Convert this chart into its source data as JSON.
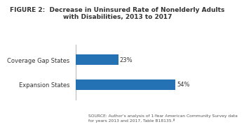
{
  "title_line1": "FIGURE 2:  Decrease in Uninsured Rate of Nonelderly Adults",
  "title_line2": "with Disabilities, 2013 to 2017",
  "categories": [
    "Expansion States",
    "Coverage Gap States"
  ],
  "values": [
    54,
    23
  ],
  "bar_color": "#2472B4",
  "background_color": "#FFFFFF",
  "text_color": "#333333",
  "value_labels": [
    "54%",
    "23%"
  ],
  "source_text": "SOURCE: Author's analysis of 1-Year American Community Survey data\nfor years 2013 and 2017, Table B18135.ª",
  "xlim": [
    0,
    63
  ],
  "title_fontsize": 6.5,
  "label_fontsize": 6.0,
  "bar_height": 0.42,
  "source_fontsize": 4.3,
  "value_label_fontsize": 6.0
}
